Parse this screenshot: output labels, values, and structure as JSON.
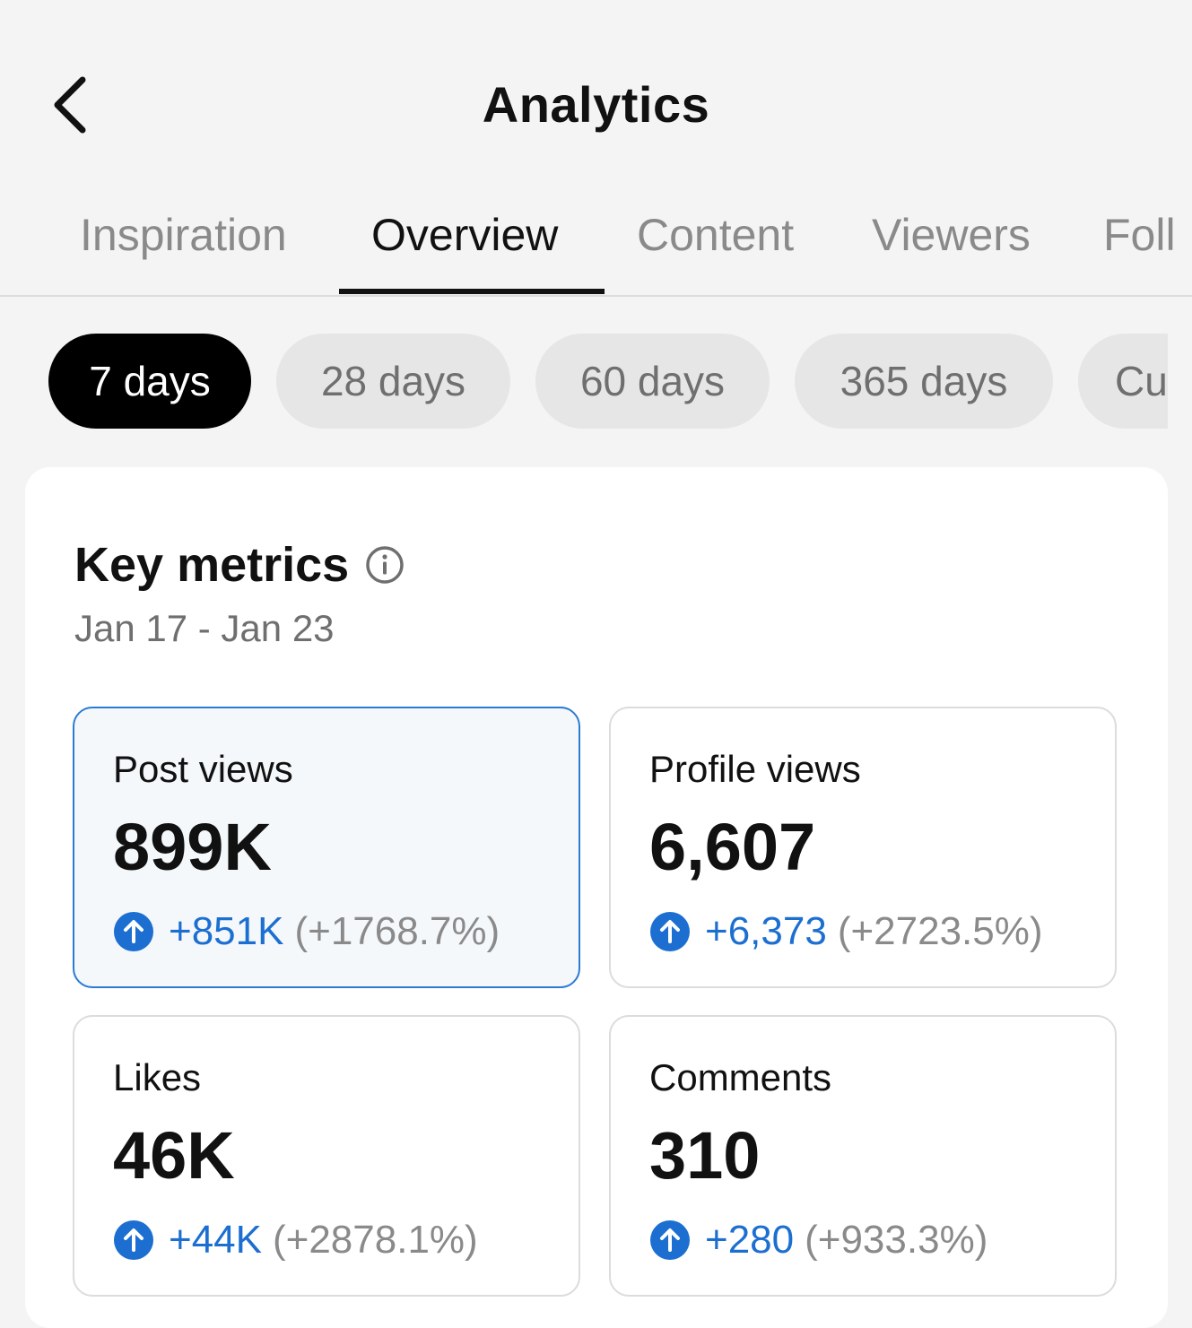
{
  "header": {
    "title": "Analytics",
    "back_icon": "chevron-left-icon"
  },
  "tabs": [
    {
      "label": "Inspiration",
      "active": false
    },
    {
      "label": "Overview",
      "active": true
    },
    {
      "label": "Content",
      "active": false
    },
    {
      "label": "Viewers",
      "active": false
    },
    {
      "label": "Foll",
      "active": false
    }
  ],
  "ranges": [
    {
      "label": "7 days",
      "active": true
    },
    {
      "label": "28 days",
      "active": false
    },
    {
      "label": "60 days",
      "active": false
    },
    {
      "label": "365 days",
      "active": false
    },
    {
      "label": "Cu",
      "active": false
    }
  ],
  "key_metrics": {
    "title": "Key metrics",
    "range": "Jan 17 - Jan 23",
    "info_icon": "info-icon",
    "metrics": [
      {
        "label": "Post views",
        "value": "899K",
        "delta": "+851K",
        "pct": "(+1768.7%)",
        "selected": true
      },
      {
        "label": "Profile views",
        "value": "6,607",
        "delta": "+6,373",
        "pct": "(+2723.5%)",
        "selected": false
      },
      {
        "label": "Likes",
        "value": "46K",
        "delta": "+44K",
        "pct": "(+2878.1%)",
        "selected": false
      },
      {
        "label": "Comments",
        "value": "310",
        "delta": "+280",
        "pct": "(+933.3%)",
        "selected": false
      }
    ]
  },
  "colors": {
    "accent_blue": "#1c6fd1",
    "selected_border": "#2b7bd3",
    "chip_active": "#000000",
    "background": "#f4f4f4"
  }
}
